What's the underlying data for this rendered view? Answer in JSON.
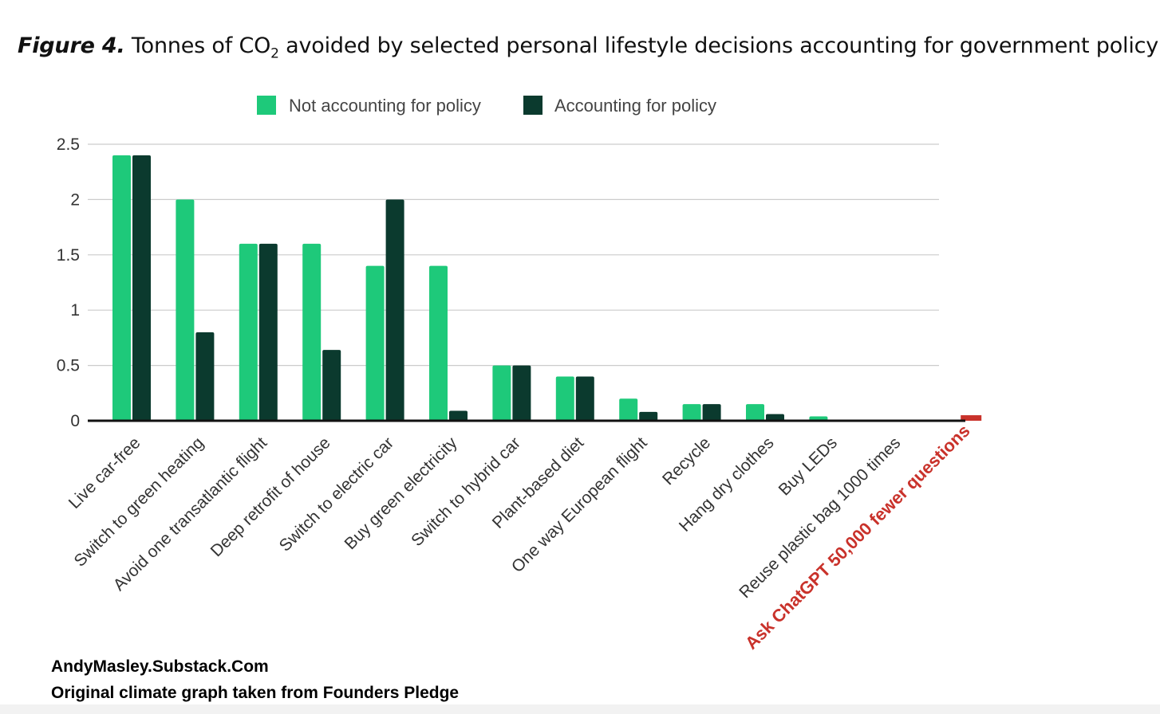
{
  "figure": {
    "label": "Figure 4.",
    "title_pre": "Tonnes of CO",
    "title_sub": "2",
    "title_post": " avoided by selected personal lifestyle decisions accounting for government policy"
  },
  "chart_data": {
    "type": "bar",
    "title": "Tonnes of CO2 avoided by selected personal lifestyle decisions accounting for government policy",
    "xlabel": "",
    "ylabel": "",
    "ylim": [
      0,
      2.5
    ],
    "yticks": [
      "0",
      "0.5",
      "1",
      "1.5",
      "2",
      "2.5"
    ],
    "ytick_values": [
      0,
      0.5,
      1,
      1.5,
      2,
      2.5
    ],
    "grid": true,
    "legend": "top-center",
    "categories": [
      "Live car-free",
      "Switch to green heating",
      "Avoid one transatlantic flight",
      "Deep retrofit of house",
      "Switch to electric car",
      "Buy green electricity",
      "Switch to hybrid car",
      "Plant-based diet",
      "One way European flight",
      "Recycle",
      "Hang dry clothes",
      "Buy LEDs",
      "Reuse plastic bag 1000 times",
      "Ask ChatGPT 50,000 fewer questions"
    ],
    "series": [
      {
        "name": "Not accounting for policy",
        "color": "#1ec97a",
        "values": [
          2.4,
          2.0,
          1.6,
          1.6,
          1.4,
          1.4,
          0.5,
          0.4,
          0.2,
          0.15,
          0.15,
          0.04,
          0.0,
          null
        ]
      },
      {
        "name": "Accounting for policy",
        "color": "#0b3a2e",
        "values": [
          2.4,
          0.8,
          1.6,
          0.64,
          2.0,
          0.09,
          0.5,
          0.4,
          0.08,
          0.15,
          0.06,
          0.0,
          0.0,
          null
        ]
      }
    ],
    "annotation": {
      "category": "Ask ChatGPT 50,000 fewer questions",
      "value": 0.05,
      "color": "#c9322b"
    }
  },
  "credits": {
    "line1": "AndyMasley.Substack.Com",
    "line2": "Original climate graph taken from Founders Pledge"
  }
}
